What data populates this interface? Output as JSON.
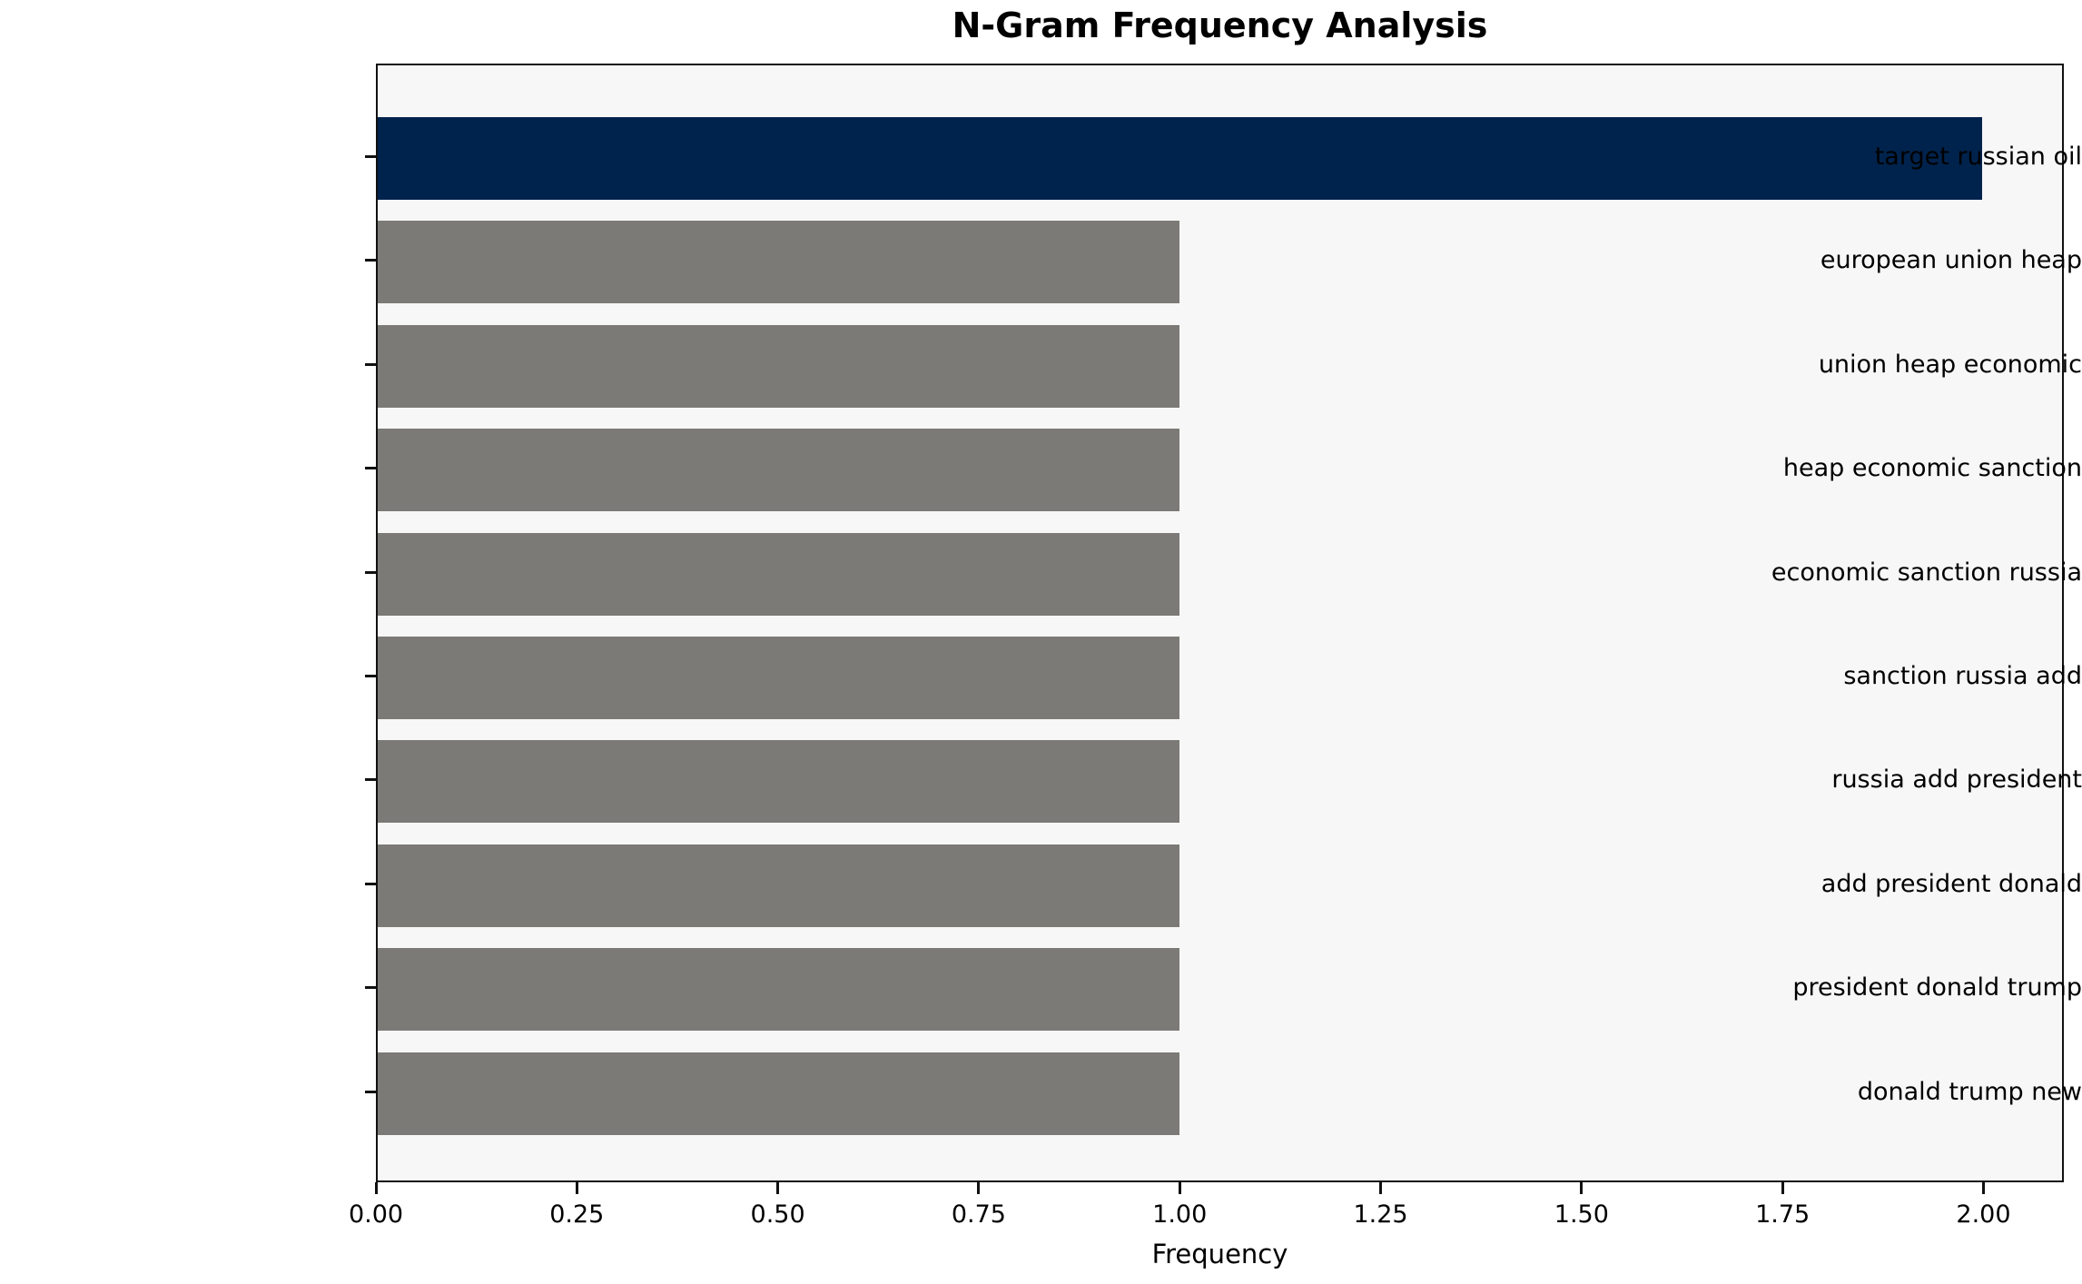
{
  "chart_data": {
    "type": "bar",
    "orientation": "horizontal",
    "title": "N-Gram Frequency Analysis",
    "xlabel": "Frequency",
    "ylabel": "",
    "categories": [
      "target russian oil",
      "european union heap",
      "union heap economic",
      "heap economic sanction",
      "economic sanction russia",
      "sanction russia add",
      "russia add president",
      "add president donald",
      "president donald trump",
      "donald trump new"
    ],
    "values": [
      2,
      1,
      1,
      1,
      1,
      1,
      1,
      1,
      1,
      1
    ],
    "bar_colors": [
      "#00234d",
      "#7b7a76",
      "#7b7a76",
      "#7b7a76",
      "#7b7a76",
      "#7b7a76",
      "#7b7a76",
      "#7b7a76",
      "#7b7a76",
      "#7b7a76"
    ],
    "xlim": [
      0,
      2.1
    ],
    "xticks": [
      0.0,
      0.25,
      0.5,
      0.75,
      1.0,
      1.25,
      1.5,
      1.75,
      2.0
    ],
    "xtick_labels": [
      "0.00",
      "0.25",
      "0.50",
      "0.75",
      "1.00",
      "1.25",
      "1.50",
      "1.75",
      "2.00"
    ],
    "grid": false,
    "legend": null,
    "colors": {
      "highlight_bar": "#00234d",
      "default_bar": "#7b7a76",
      "plot_background": "#f7f7f7",
      "figure_background": "#ffffff",
      "spine": "#111111",
      "text": "#000000"
    }
  }
}
